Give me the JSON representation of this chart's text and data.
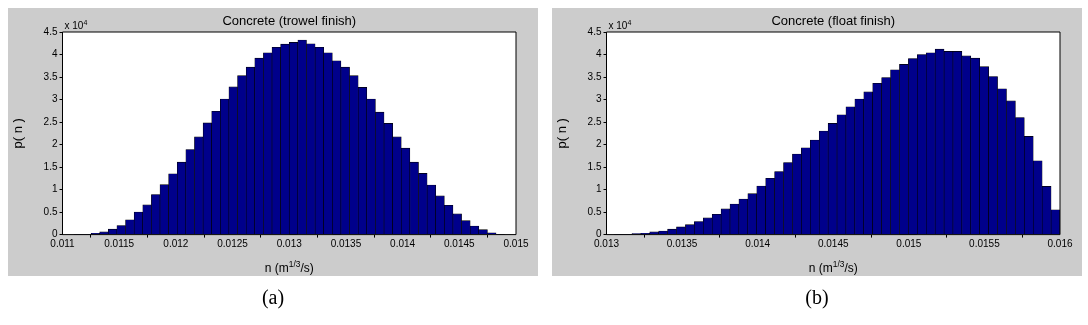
{
  "chart_data": [
    {
      "type": "histogram",
      "title": "Concrete (trowel finish)",
      "xlabel": "n (m$^{1/3}$/s)",
      "ylabel": "p( n )",
      "color": "#00008b",
      "bins": [
        0.0111,
        0.011176,
        0.011252,
        0.011328,
        0.011404,
        0.01148,
        0.011556,
        0.011632,
        0.011708,
        0.011784,
        0.01186,
        0.011936,
        0.012012,
        0.012088,
        0.012164,
        0.01224,
        0.012316,
        0.012392,
        0.012468,
        0.012544,
        0.01262,
        0.012696,
        0.012772,
        0.012848,
        0.012924,
        0.013,
        0.013076,
        0.013152,
        0.013228,
        0.013304,
        0.01338,
        0.013456,
        0.013532,
        0.013608,
        0.013684,
        0.01376,
        0.013836,
        0.013912,
        0.013988,
        0.014064,
        0.01414,
        0.014216,
        0.014292,
        0.014368,
        0.014444,
        0.01452,
        0.014596,
        0.014672,
        0.014748,
        0.014824,
        0.0149
      ],
      "values": [
        0.01,
        0.01,
        0.03,
        0.06,
        0.12,
        0.2,
        0.33,
        0.5,
        0.66,
        0.89,
        1.11,
        1.35,
        1.61,
        1.89,
        2.17,
        2.48,
        2.74,
        3.01,
        3.28,
        3.53,
        3.72,
        3.92,
        4.04,
        4.16,
        4.23,
        4.27,
        4.32,
        4.24,
        4.16,
        4.04,
        3.86,
        3.72,
        3.53,
        3.27,
        3.01,
        2.72,
        2.47,
        2.17,
        1.92,
        1.61,
        1.36,
        1.1,
        0.86,
        0.65,
        0.46,
        0.31,
        0.19,
        0.11,
        0.04,
        0.01
      ],
      "xlim": [
        0.011,
        0.015
      ],
      "xticks": [
        0.011,
        0.0115,
        0.012,
        0.0125,
        0.013,
        0.0135,
        0.014,
        0.0145,
        0.015
      ],
      "ylim": [
        0,
        4.5
      ],
      "yticks": [
        0,
        0.5,
        1,
        1.5,
        2,
        2.5,
        3,
        3.5,
        4,
        4.5
      ],
      "annotations": [
        "x 10$^{4}$",
        "(a)"
      ]
    },
    {
      "type": "histogram",
      "title": "Concrete (float finish)",
      "xlabel": "n (m$^{1/3}$/s)",
      "ylabel": "p( n )",
      "color": "#00008b",
      "bins": [
        0.01305,
        0.013109,
        0.013168,
        0.013227,
        0.013286,
        0.013345,
        0.013404,
        0.013463,
        0.013522,
        0.013581,
        0.01364,
        0.013699,
        0.013758,
        0.013817,
        0.013876,
        0.013935,
        0.013994,
        0.014053,
        0.014112,
        0.014171,
        0.01423,
        0.014289,
        0.014348,
        0.014407,
        0.014466,
        0.014525,
        0.014584,
        0.014643,
        0.014702,
        0.014761,
        0.01482,
        0.014879,
        0.014938,
        0.014997,
        0.015056,
        0.015115,
        0.015174,
        0.015233,
        0.015292,
        0.015351,
        0.01541,
        0.015469,
        0.015528,
        0.015587,
        0.015646,
        0.015705,
        0.015764,
        0.015823,
        0.015882,
        0.015941,
        0.016
      ],
      "values": [
        0.01,
        0.01,
        0.02,
        0.03,
        0.06,
        0.08,
        0.12,
        0.17,
        0.22,
        0.29,
        0.37,
        0.45,
        0.57,
        0.68,
        0.79,
        0.91,
        1.08,
        1.25,
        1.4,
        1.6,
        1.79,
        1.93,
        2.1,
        2.3,
        2.47,
        2.66,
        2.84,
        3.01,
        3.17,
        3.36,
        3.49,
        3.66,
        3.78,
        3.91,
        4.0,
        4.04,
        4.12,
        4.07,
        4.07,
        3.97,
        3.92,
        3.73,
        3.51,
        3.24,
        2.97,
        2.6,
        2.18,
        1.64,
        1.07,
        0.55
      ],
      "xlim": [
        0.013,
        0.016
      ],
      "xticks": [
        0.013,
        0.0135,
        0.014,
        0.0145,
        0.015,
        0.0155,
        0.016
      ],
      "ylim": [
        0,
        4.5
      ],
      "yticks": [
        0,
        0.5,
        1,
        1.5,
        2,
        2.5,
        3,
        3.5,
        4,
        4.5
      ],
      "annotations": [
        "x 10$^{4}$",
        "(b)"
      ]
    }
  ]
}
